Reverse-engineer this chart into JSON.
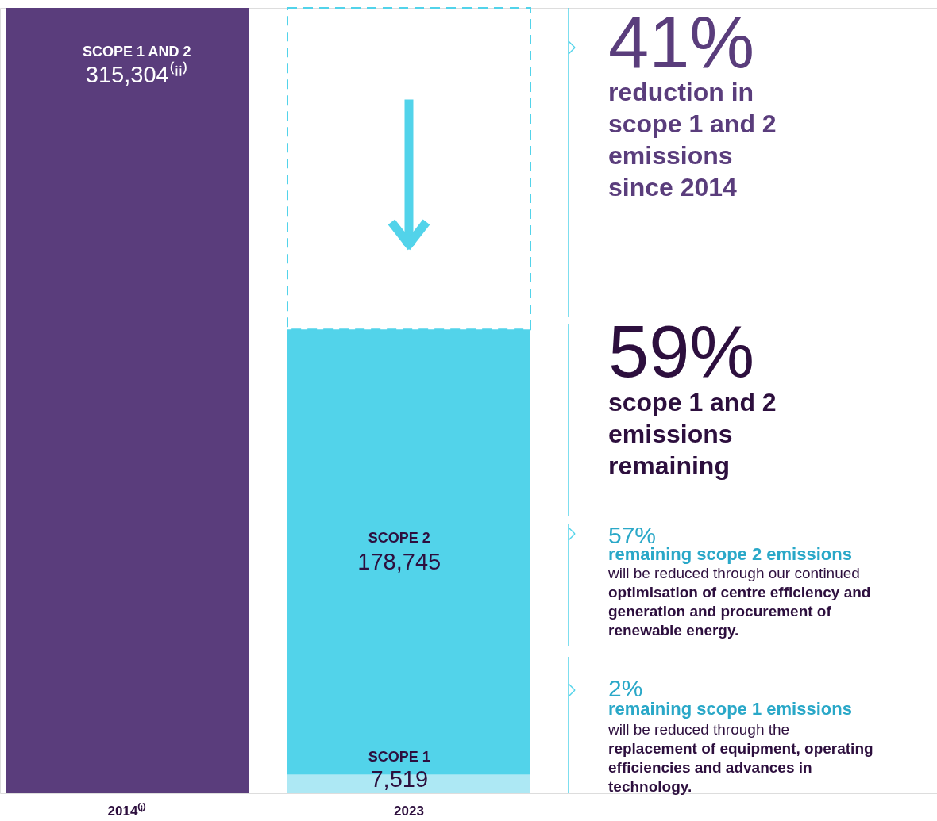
{
  "chart_data": {
    "type": "bar",
    "stacked": true,
    "tick_labels": "x",
    "categories": [
      "2014⁽ⁱ⁾",
      "2023"
    ],
    "series": [
      {
        "name": "SCOPE 1 AND 2",
        "color": "#5a3d7c",
        "values": [
          315304,
          null
        ],
        "value_labels": [
          "315,304⁽ⁱⁱ⁾",
          null
        ]
      },
      {
        "name": "SCOPE 1",
        "color": "#ade8f4",
        "values": [
          null,
          7519
        ],
        "value_labels": [
          null,
          "7,519"
        ]
      },
      {
        "name": "SCOPE 2",
        "color": "#52d3ea",
        "values": [
          null,
          178745
        ],
        "value_labels": [
          null,
          "178,745"
        ]
      }
    ],
    "annotations": [
      "41%",
      "reduction in scope 1 and 2 emissions since 2014",
      "59%",
      "scope 1 and 2 emissions remaining",
      "57%",
      "remaining scope 2 emissions",
      "will be reduced through our continued",
      "optimisation of centre efficiency and generation and procurement of renewable energy.",
      "2%",
      "remaining scope 1 emissions",
      "will be reduced through the",
      "replacement of equipment, operating efficiencies and advances in technology."
    ]
  }
}
